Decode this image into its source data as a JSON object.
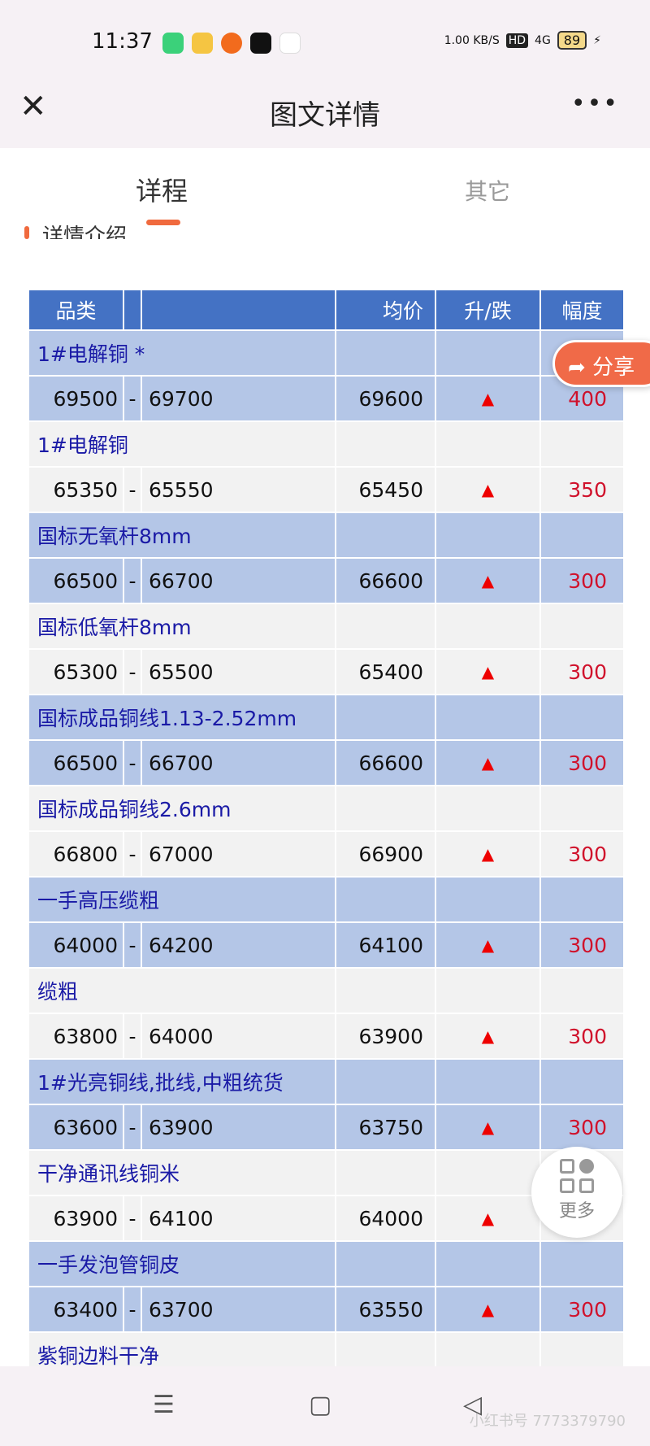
{
  "status_bar": {
    "time": "11:37",
    "net_speed": "1.00 KB/S",
    "hd": "HD",
    "network": "4G",
    "battery": "89"
  },
  "nav": {
    "title": "图文详情"
  },
  "tabs": [
    {
      "label": "详程"
    },
    {
      "label": "其它"
    }
  ],
  "section_title": "详情介绍",
  "table": {
    "headers": [
      "品类",
      "",
      "均价",
      "升/跌",
      "幅度"
    ],
    "rows": [
      {
        "name": "1#电解铜 *",
        "low": "69500",
        "high": "69700",
        "avg": "69600",
        "trend": "▲",
        "amp": "400"
      },
      {
        "name": "1#电解铜",
        "low": "65350",
        "high": "65550",
        "avg": "65450",
        "trend": "▲",
        "amp": "350"
      },
      {
        "name": "国标无氧杆8mm",
        "low": "66500",
        "high": "66700",
        "avg": "66600",
        "trend": "▲",
        "amp": "300"
      },
      {
        "name": "国标低氧杆8mm",
        "low": "65300",
        "high": "65500",
        "avg": "65400",
        "trend": "▲",
        "amp": "300"
      },
      {
        "name": "国标成品铜线1.13-2.52mm",
        "low": "66500",
        "high": "66700",
        "avg": "66600",
        "trend": "▲",
        "amp": "300"
      },
      {
        "name": "国标成品铜线2.6mm",
        "low": "66800",
        "high": "67000",
        "avg": "66900",
        "trend": "▲",
        "amp": "300"
      },
      {
        "name": "一手高压缆粗",
        "low": "64000",
        "high": "64200",
        "avg": "64100",
        "trend": "▲",
        "amp": "300"
      },
      {
        "name": "缆粗",
        "low": "63800",
        "high": "64000",
        "avg": "63900",
        "trend": "▲",
        "amp": "300"
      },
      {
        "name": "1#光亮铜线,批线,中粗统货",
        "low": "63600",
        "high": "63900",
        "avg": "63750",
        "trend": "▲",
        "amp": "300"
      },
      {
        "name": "干净通讯线铜米",
        "low": "63900",
        "high": "64100",
        "avg": "64000",
        "trend": "▲",
        "amp": ""
      },
      {
        "name": "一手发泡管铜皮",
        "low": "63400",
        "high": "63700",
        "avg": "63550",
        "trend": "▲",
        "amp": "300"
      },
      {
        "name": "紫铜边料干净"
      }
    ],
    "dash": "-"
  },
  "share": {
    "label": "分享"
  },
  "more": {
    "label": "更多"
  },
  "watermark": "小红书号 7773379790",
  "colors": {
    "header": "#4472c4",
    "row_odd": "#b4c6e7",
    "row_even": "#f2f2f2",
    "up": "#e00000",
    "accent": "#f06a3e"
  }
}
